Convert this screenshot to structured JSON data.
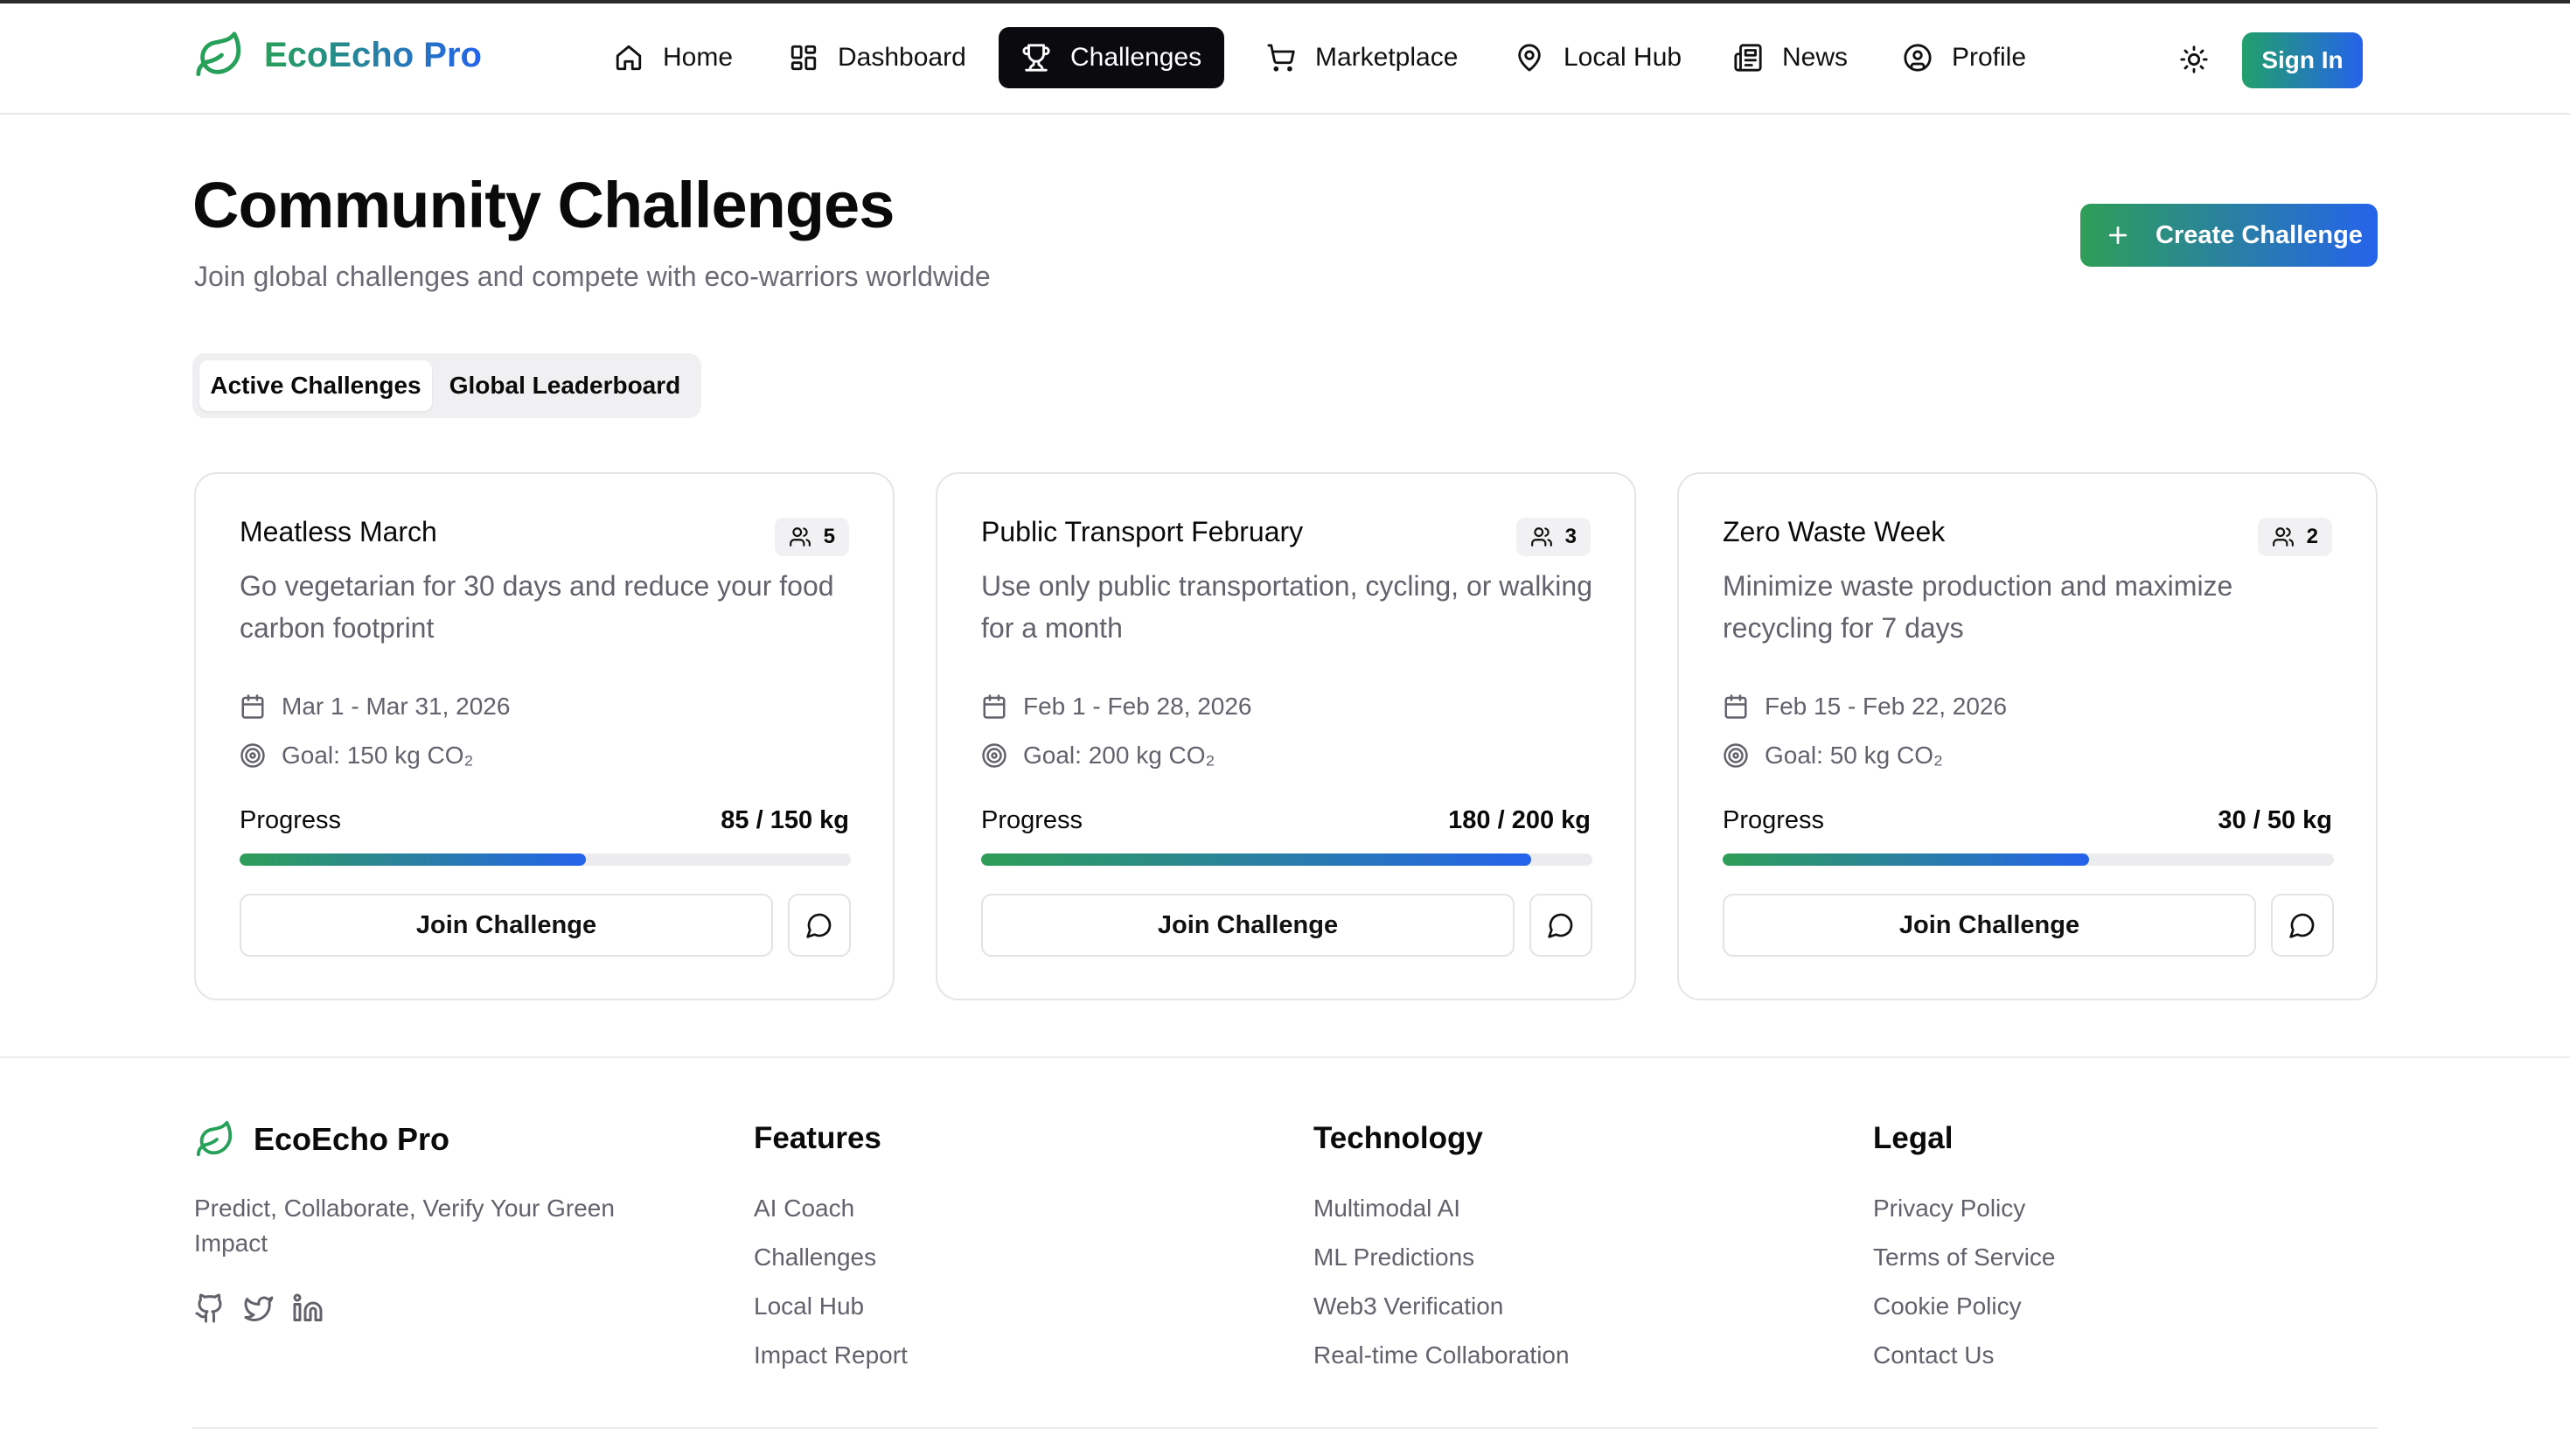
{
  "app": {
    "name": "EcoEcho Pro"
  },
  "nav": {
    "items": [
      {
        "label": "Home",
        "icon": "home-icon"
      },
      {
        "label": "Dashboard",
        "icon": "dashboard-icon"
      },
      {
        "label": "Challenges",
        "icon": "trophy-icon",
        "active": true
      },
      {
        "label": "Marketplace",
        "icon": "cart-icon"
      },
      {
        "label": "Local Hub",
        "icon": "map-pin-icon"
      },
      {
        "label": "News",
        "icon": "newspaper-icon"
      },
      {
        "label": "Profile",
        "icon": "user-circle-icon"
      }
    ],
    "theme_icon": "sun-icon",
    "sign_in_label": "Sign In"
  },
  "header": {
    "title": "Community Challenges",
    "subtitle": "Join global challenges and compete with eco-warriors worldwide",
    "create_label": "Create Challenge"
  },
  "tabs": [
    {
      "label": "Active Challenges",
      "active": true
    },
    {
      "label": "Global Leaderboard",
      "active": false
    }
  ],
  "challenges": [
    {
      "title": "Meatless March",
      "participants": "5",
      "description": "Go vegetarian for 30 days and reduce your food carbon footprint",
      "dates": "Mar 1 - Mar 31, 2026",
      "goal": "Goal: 150 kg CO₂",
      "progress_label": "Progress",
      "progress_text": "85 / 150 kg",
      "progress_fraction": 0.567,
      "join_label": "Join Challenge"
    },
    {
      "title": "Public Transport February",
      "participants": "3",
      "description": "Use only public transportation, cycling, or walking for a month",
      "dates": "Feb 1 - Feb 28, 2026",
      "goal": "Goal: 200 kg CO₂",
      "progress_label": "Progress",
      "progress_text": "180 / 200 kg",
      "progress_fraction": 0.9,
      "join_label": "Join Challenge"
    },
    {
      "title": "Zero Waste Week",
      "participants": "2",
      "description": "Minimize waste production and maximize recycling for 7 days",
      "dates": "Feb 15 - Feb 22, 2026",
      "goal": "Goal: 50 kg CO₂",
      "progress_label": "Progress",
      "progress_text": "30 / 50 kg",
      "progress_fraction": 0.6,
      "join_label": "Join Challenge"
    }
  ],
  "footer": {
    "brand": "EcoEcho Pro",
    "tagline": "Predict, Collaborate, Verify Your Green Impact",
    "socials": [
      "github-icon",
      "twitter-icon",
      "linkedin-icon"
    ],
    "columns": [
      {
        "title": "Features",
        "links": [
          "AI Coach",
          "Challenges",
          "Local Hub",
          "Impact Report"
        ]
      },
      {
        "title": "Technology",
        "links": [
          "Multimodal AI",
          "ML Predictions",
          "Web3 Verification",
          "Real-time Collaboration"
        ]
      },
      {
        "title": "Legal",
        "links": [
          "Privacy Policy",
          "Terms of Service",
          "Cookie Policy",
          "Contact Us"
        ]
      }
    ]
  },
  "colors": {
    "brand_green": "#27a05a",
    "brand_blue": "#2563eb",
    "active_nav_bg": "#0b0b0f",
    "muted_text": "#62626c"
  }
}
